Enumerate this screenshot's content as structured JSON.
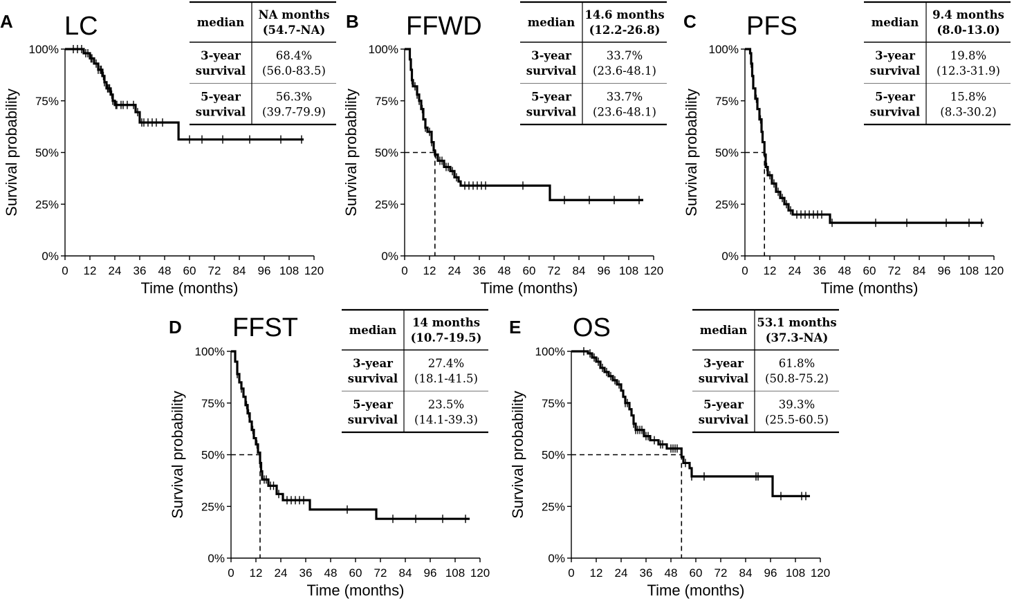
{
  "figure": {
    "x_axis_label": "Time (months)",
    "y_axis_label": "Survival probability",
    "table_row_labels": {
      "median": "median",
      "y3_line1": "3-year",
      "y3_line2": "survival",
      "y5_line1": "5-year",
      "y5_line2": "survival"
    }
  },
  "chart_data": [
    {
      "panel": "A",
      "type": "line",
      "step": true,
      "title": "LC",
      "xlabel": "Time (months)",
      "ylabel": "Survival probability",
      "xlim": [
        0,
        120
      ],
      "ylim": [
        0,
        1
      ],
      "x_ticks": [
        0,
        12,
        24,
        36,
        48,
        60,
        72,
        84,
        96,
        108,
        120
      ],
      "y_ticks": [
        "0%",
        "25%",
        "50%",
        "75%",
        "100%"
      ],
      "curve": [
        [
          0,
          1
        ],
        [
          9,
          0.98
        ],
        [
          12,
          0.955
        ],
        [
          14,
          0.93
        ],
        [
          16,
          0.9
        ],
        [
          18,
          0.87
        ],
        [
          19,
          0.84
        ],
        [
          20,
          0.81
        ],
        [
          22,
          0.78
        ],
        [
          23,
          0.75
        ],
        [
          24,
          0.73
        ],
        [
          34,
          0.695
        ],
        [
          36,
          0.645
        ],
        [
          54.7,
          0.563
        ],
        [
          115,
          0.563
        ]
      ],
      "censor_times": [
        4,
        6,
        8,
        10,
        11,
        12.5,
        13,
        15,
        16,
        17,
        17.5,
        18.5,
        19,
        20.5,
        21,
        21.5,
        22.5,
        23,
        24.5,
        25,
        27,
        28,
        30,
        33,
        35,
        37,
        38,
        40,
        42,
        44,
        47,
        60,
        66,
        76,
        89,
        104,
        114
      ],
      "median_line": null,
      "table": {
        "median_value": "NA months",
        "median_ci": "(54.7-NA)",
        "y3_value": "68.4%",
        "y3_ci": "(56.0-83.5)",
        "y5_value": "56.3%",
        "y5_ci": "(39.7-79.9)"
      }
    },
    {
      "panel": "B",
      "type": "line",
      "step": true,
      "title": "FFWD",
      "xlabel": "Time (months)",
      "ylabel": "Survival probability",
      "xlim": [
        0,
        120
      ],
      "ylim": [
        0,
        1
      ],
      "x_ticks": [
        0,
        12,
        24,
        36,
        48,
        60,
        72,
        84,
        96,
        108,
        120
      ],
      "y_ticks": [
        "0%",
        "25%",
        "50%",
        "75%",
        "100%"
      ],
      "curve": [
        [
          0,
          1
        ],
        [
          2.5,
          0.95
        ],
        [
          3,
          0.9
        ],
        [
          3.5,
          0.85
        ],
        [
          4,
          0.82
        ],
        [
          6,
          0.78
        ],
        [
          7,
          0.75
        ],
        [
          8,
          0.71
        ],
        [
          9,
          0.66
        ],
        [
          10,
          0.62
        ],
        [
          11,
          0.6
        ],
        [
          13,
          0.55
        ],
        [
          14,
          0.51
        ],
        [
          14.6,
          0.49
        ],
        [
          16,
          0.46
        ],
        [
          19,
          0.43
        ],
        [
          22,
          0.41
        ],
        [
          24,
          0.38
        ],
        [
          26,
          0.36
        ],
        [
          27,
          0.34
        ],
        [
          70,
          0.27
        ],
        [
          115,
          0.27
        ]
      ],
      "censor_times": [
        3.5,
        5,
        6,
        7,
        8.5,
        10,
        12,
        13,
        15,
        17,
        18,
        20,
        21,
        23,
        25,
        29,
        31,
        33,
        35,
        37,
        39,
        57,
        77,
        89,
        101,
        113
      ],
      "median_line": 14.6,
      "table": {
        "median_value": "14.6 months",
        "median_ci": "(12.2-26.8)",
        "y3_value": "33.7%",
        "y3_ci": "(23.6-48.1)",
        "y5_value": "33.7%",
        "y5_ci": "(23.6-48.1)"
      }
    },
    {
      "panel": "C",
      "type": "line",
      "step": true,
      "title": "PFS",
      "xlabel": "Time (months)",
      "ylabel": "Survival probability",
      "xlim": [
        0,
        120
      ],
      "ylim": [
        0,
        1
      ],
      "x_ticks": [
        0,
        12,
        24,
        36,
        48,
        60,
        72,
        84,
        96,
        108,
        120
      ],
      "y_ticks": [
        "0%",
        "25%",
        "50%",
        "75%",
        "100%"
      ],
      "curve": [
        [
          0,
          1
        ],
        [
          2.5,
          0.98
        ],
        [
          3,
          0.93
        ],
        [
          3.5,
          0.87
        ],
        [
          4,
          0.81
        ],
        [
          5,
          0.76
        ],
        [
          6,
          0.71
        ],
        [
          7,
          0.66
        ],
        [
          8,
          0.6
        ],
        [
          8.5,
          0.55
        ],
        [
          9.4,
          0.49
        ],
        [
          10,
          0.43
        ],
        [
          11,
          0.39
        ],
        [
          13,
          0.35
        ],
        [
          15,
          0.31
        ],
        [
          17,
          0.28
        ],
        [
          19,
          0.25
        ],
        [
          21,
          0.22
        ],
        [
          23,
          0.2
        ],
        [
          41,
          0.16
        ],
        [
          115,
          0.16
        ]
      ],
      "censor_times": [
        3,
        5.5,
        7.5,
        10.5,
        12,
        14,
        16,
        18,
        20,
        22,
        25,
        27,
        29,
        31,
        33,
        35,
        37,
        42,
        63,
        78,
        97,
        108,
        114
      ],
      "median_line": 9.4,
      "table": {
        "median_value": "9.4 months",
        "median_ci": "(8.0-13.0)",
        "y3_value": "19.8%",
        "y3_ci": "(12.3-31.9)",
        "y5_value": "15.8%",
        "y5_ci": "(8.3-30.2)"
      }
    },
    {
      "panel": "D",
      "type": "line",
      "step": true,
      "title": "FFST",
      "xlabel": "Time (months)",
      "ylabel": "Survival probability",
      "xlim": [
        0,
        120
      ],
      "ylim": [
        0,
        1
      ],
      "x_ticks": [
        0,
        12,
        24,
        36,
        48,
        60,
        72,
        84,
        96,
        108,
        120
      ],
      "y_ticks": [
        "0%",
        "25%",
        "50%",
        "75%",
        "100%"
      ],
      "curve": [
        [
          0,
          1
        ],
        [
          2,
          0.95
        ],
        [
          3,
          0.89
        ],
        [
          4,
          0.85
        ],
        [
          5,
          0.82
        ],
        [
          6,
          0.78
        ],
        [
          7,
          0.74
        ],
        [
          8,
          0.7
        ],
        [
          9,
          0.66
        ],
        [
          10,
          0.62
        ],
        [
          11,
          0.58
        ],
        [
          12,
          0.55
        ],
        [
          13,
          0.51
        ],
        [
          14,
          0.46
        ],
        [
          14.5,
          0.42
        ],
        [
          15,
          0.38
        ],
        [
          18,
          0.35
        ],
        [
          22,
          0.31
        ],
        [
          25,
          0.28
        ],
        [
          38,
          0.235
        ],
        [
          70,
          0.19
        ],
        [
          115,
          0.19
        ]
      ],
      "censor_times": [
        3,
        5,
        7.5,
        8.5,
        10.5,
        12.5,
        16,
        17,
        19,
        20.5,
        23,
        27,
        29,
        31,
        33,
        35,
        56,
        78,
        89,
        102,
        113
      ],
      "median_line": 14,
      "table": {
        "median_value": "14 months",
        "median_ci": "(10.7-19.5)",
        "y3_value": "27.4%",
        "y3_ci": "(18.1-41.5)",
        "y5_value": "23.5%",
        "y5_ci": "(14.1-39.3)"
      }
    },
    {
      "panel": "E",
      "type": "line",
      "step": true,
      "title": "OS",
      "xlabel": "Time (months)",
      "ylabel": "Survival probability",
      "xlim": [
        0,
        120
      ],
      "ylim": [
        0,
        1
      ],
      "x_ticks": [
        0,
        12,
        24,
        36,
        48,
        60,
        72,
        84,
        96,
        108,
        120
      ],
      "y_ticks": [
        "0%",
        "25%",
        "50%",
        "75%",
        "100%"
      ],
      "curve": [
        [
          0,
          1
        ],
        [
          8,
          0.99
        ],
        [
          10,
          0.97
        ],
        [
          12,
          0.95
        ],
        [
          14,
          0.92
        ],
        [
          16,
          0.9
        ],
        [
          18,
          0.88
        ],
        [
          20,
          0.86
        ],
        [
          22,
          0.84
        ],
        [
          24,
          0.81
        ],
        [
          25,
          0.78
        ],
        [
          26,
          0.75
        ],
        [
          28,
          0.72
        ],
        [
          29,
          0.69
        ],
        [
          30,
          0.65
        ],
        [
          31,
          0.62
        ],
        [
          35,
          0.59
        ],
        [
          38,
          0.57
        ],
        [
          42,
          0.55
        ],
        [
          46,
          0.53
        ],
        [
          53.1,
          0.49
        ],
        [
          54,
          0.46
        ],
        [
          57,
          0.435
        ],
        [
          58,
          0.395
        ],
        [
          97,
          0.3
        ],
        [
          115,
          0.3
        ]
      ],
      "censor_times": [
        6,
        9,
        11,
        13,
        15,
        17,
        19,
        21,
        23,
        26,
        27,
        30,
        31,
        32,
        33,
        34,
        36,
        37,
        40,
        43,
        44,
        48,
        49,
        50,
        51,
        55,
        58,
        64,
        89,
        90,
        101,
        111,
        113
      ],
      "median_line": 53.1,
      "table": {
        "median_value": "53.1 months",
        "median_ci": "(37.3-NA)",
        "y3_value": "61.8%",
        "y3_ci": "(50.8-75.2)",
        "y5_value": "39.3%",
        "y5_ci": "(25.5-60.5)"
      }
    }
  ]
}
